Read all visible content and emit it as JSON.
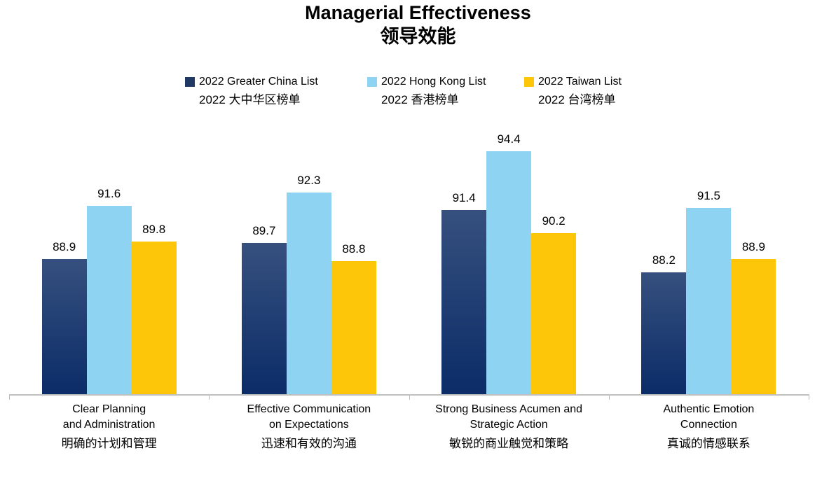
{
  "title": {
    "line1": "Managerial Effectiveness",
    "line2": "领导效能"
  },
  "legend": {
    "items": [
      {
        "id": "greater-china",
        "line1": "2022 Greater China List",
        "line2": "2022 大中华区榜单",
        "color": "#1F3864"
      },
      {
        "id": "hong-kong",
        "line1": "2022 Hong Kong List",
        "line2": "2022 香港榜单",
        "color": "#8ED4F2"
      },
      {
        "id": "taiwan",
        "line1": "2022 Taiwan List",
        "line2": "2022 台湾榜单",
        "color": "#FDC608"
      }
    ]
  },
  "chart_data": {
    "type": "bar",
    "title": "Managerial Effectiveness 领导效能",
    "categories": [
      {
        "id": "clear-planning",
        "en_line1": "Clear Planning",
        "en_line2": "and Administration",
        "zh": "明确的计划和管理"
      },
      {
        "id": "communication",
        "en_line1": "Effective Communication",
        "en_line2": "on Expectations",
        "zh": "迅速和有效的沟通"
      },
      {
        "id": "business-acumen",
        "en_line1": "Strong Business Acumen and",
        "en_line2": "Strategic Action",
        "zh": "敏锐的商业触觉和策略"
      },
      {
        "id": "authentic-emotion",
        "en_line1": "Authentic Emotion",
        "en_line2": "Connection",
        "zh": "真诚的情感联系"
      }
    ],
    "series": [
      {
        "id": "greater-china",
        "name": "2022 Greater China List 2022 大中华区榜单",
        "values": [
          88.9,
          89.7,
          91.4,
          88.2
        ],
        "color": "#36507E",
        "color_bottom": "#0B2C68"
      },
      {
        "id": "hong-kong",
        "name": "2022 Hong Kong List 2022 香港榜单",
        "values": [
          91.6,
          92.3,
          94.4,
          91.5
        ],
        "color": "#8ED4F2"
      },
      {
        "id": "taiwan",
        "name": "2022 Taiwan List 2022 台湾榜单",
        "values": [
          89.8,
          88.8,
          90.2,
          88.9
        ],
        "color": "#FDC608"
      }
    ],
    "ylim": [
      82,
      96
    ],
    "xlabel": "",
    "ylabel": "",
    "grid": false,
    "y_axis_visible": false,
    "value_labels": true,
    "legend_position": "top",
    "axis_color": "#BFBFBF"
  }
}
